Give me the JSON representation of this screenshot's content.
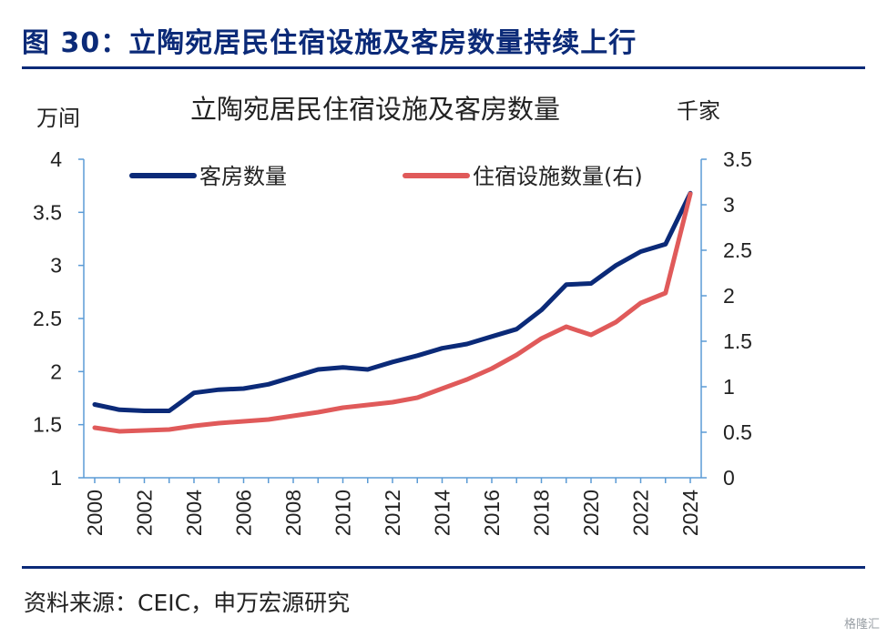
{
  "figure_title": "图 30：立陶宛居民住宿设施及客房数量持续上行",
  "source": "资料来源：CEIC，申万宏源研究",
  "watermark": "格隆汇",
  "chart_data": {
    "type": "line",
    "title": "立陶宛居民住宿设施及客房数量",
    "left_unit": "万间",
    "right_unit": "千家",
    "x": [
      2000,
      2001,
      2002,
      2003,
      2004,
      2005,
      2006,
      2007,
      2008,
      2009,
      2010,
      2011,
      2012,
      2013,
      2014,
      2015,
      2016,
      2017,
      2018,
      2019,
      2020,
      2021,
      2022,
      2023,
      2024
    ],
    "x_tick_labels": [
      "2000",
      "2002",
      "2004",
      "2006",
      "2008",
      "2010",
      "2012",
      "2014",
      "2016",
      "2018",
      "2020",
      "2022",
      "2024"
    ],
    "y_left": {
      "lim": [
        1,
        4
      ],
      "ticks": [
        "1",
        "1.5",
        "2",
        "2.5",
        "3",
        "3.5",
        "4"
      ]
    },
    "y_right": {
      "lim": [
        0,
        3.5
      ],
      "ticks": [
        "0",
        "0.5",
        "1",
        "1.5",
        "2",
        "2.5",
        "3",
        "3.5"
      ]
    },
    "series": [
      {
        "name": "客房数量",
        "axis": "left",
        "color": "#0b2a78",
        "values": [
          1.69,
          1.64,
          1.63,
          1.63,
          1.8,
          1.83,
          1.84,
          1.88,
          1.95,
          2.02,
          2.04,
          2.02,
          2.09,
          2.15,
          2.22,
          2.26,
          2.33,
          2.4,
          2.58,
          2.82,
          2.83,
          3.0,
          3.13,
          3.2,
          3.68
        ]
      },
      {
        "name": "住宿设施数量(右)",
        "axis": "right",
        "color": "#e05a5a",
        "values": [
          0.55,
          0.51,
          0.52,
          0.53,
          0.57,
          0.6,
          0.62,
          0.64,
          0.68,
          0.72,
          0.77,
          0.8,
          0.83,
          0.88,
          0.98,
          1.08,
          1.2,
          1.35,
          1.53,
          1.66,
          1.57,
          1.71,
          1.92,
          2.03,
          3.12
        ]
      }
    ]
  }
}
